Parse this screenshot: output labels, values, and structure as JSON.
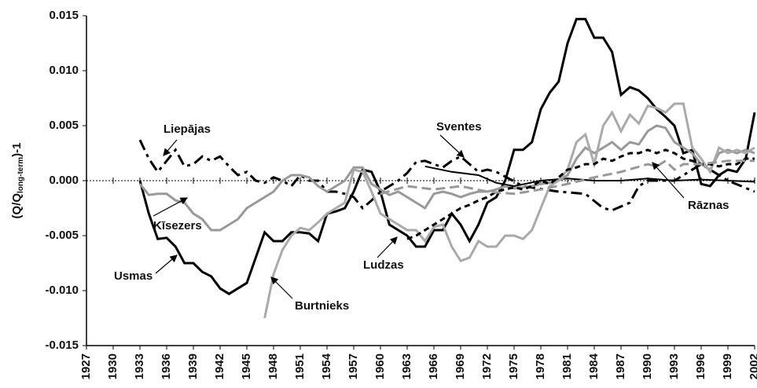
{
  "chart_data": {
    "type": "line",
    "ylabel": {
      "main": "(Q/Q",
      "sub": "long-term",
      "end": ")-1"
    },
    "xlim": [
      1927,
      2002
    ],
    "xticks": [
      1927,
      1930,
      1933,
      1936,
      1939,
      1942,
      1945,
      1948,
      1951,
      1954,
      1957,
      1960,
      1963,
      1966,
      1969,
      1972,
      1975,
      1978,
      1981,
      1984,
      1987,
      1990,
      1993,
      1996,
      1999,
      2002
    ],
    "ylim": [
      -0.015,
      0.015
    ],
    "yticks": [
      -0.015,
      {
        "value": -0.01,
        "label": "-0.010"
      },
      -0.005,
      {
        "value": 0,
        "label": "0.000"
      },
      0.005,
      {
        "value": 0.01,
        "label": "0.010"
      },
      0.015
    ],
    "series": [
      {
        "name": "Usmas",
        "color": "#000000",
        "dash": "none",
        "width": 3,
        "x": [
          1933,
          1934,
          1935,
          1936,
          1937,
          1938,
          1939,
          1940,
          1941,
          1942,
          1943,
          1944,
          1945,
          1946,
          1947,
          1948,
          1949,
          1950,
          1951,
          1952,
          1953,
          1954,
          1955,
          1956,
          1957,
          1958,
          1959,
          1960,
          1961,
          1962,
          1963,
          1964,
          1965,
          1966,
          1967,
          1968,
          1969,
          1970,
          1971,
          1972,
          1973,
          1974,
          1975,
          1976,
          1977,
          1978,
          1979,
          1980,
          1981,
          1982,
          1983,
          1984,
          1985,
          1986,
          1987,
          1988,
          1989,
          1990,
          1991,
          1992,
          1993,
          1994,
          1995,
          1996,
          1997,
          1998,
          1999,
          2000,
          2001,
          2002
        ],
        "values": [
          0,
          -0.003,
          -0.0053,
          -0.0052,
          -0.006,
          -0.0075,
          -0.0075,
          -0.0083,
          -0.0087,
          -0.0098,
          -0.0103,
          -0.0098,
          -0.0093,
          -0.007,
          -0.0047,
          -0.0055,
          -0.0055,
          -0.0047,
          -0.0047,
          -0.0048,
          -0.0055,
          -0.003,
          -0.0028,
          -0.0025,
          -0.001,
          0.001,
          0.0008,
          -0.001,
          -0.004,
          -0.0045,
          -0.005,
          -0.006,
          -0.006,
          -0.0045,
          -0.0045,
          -0.003,
          -0.004,
          -0.0055,
          -0.004,
          -0.002,
          -0.0015,
          0,
          0.0028,
          0.0028,
          0.0035,
          0.0065,
          0.008,
          0.009,
          0.0125,
          0.0147,
          0.0147,
          0.013,
          0.013,
          0.0117,
          0.0078,
          0.0085,
          0.0082,
          0.0075,
          0.0065,
          0.0058,
          0.005,
          0.0025,
          0.0028,
          -0.0003,
          -0.0005,
          0.0005,
          0.001,
          0.0008,
          0.002,
          0.0062
        ]
      },
      {
        "name": "Liepājas",
        "color": "#000000",
        "dash": "14 6 4 6",
        "width": 3,
        "x": [
          1933,
          1934,
          1935,
          1936,
          1937,
          1938,
          1939,
          1940,
          1941,
          1942,
          1943,
          1944,
          1945,
          1946,
          1947,
          1948,
          1949,
          1950,
          1951,
          1952,
          1953,
          1954,
          1955,
          1956,
          1957,
          1958,
          1959,
          1960,
          1961,
          1962,
          1963,
          1964,
          1965,
          1966,
          1967,
          1968,
          1969,
          1970,
          1971,
          1972,
          1973,
          1976,
          1980,
          1983,
          1985,
          1986,
          1988,
          1989,
          1990,
          1993,
          1996,
          1999,
          2002
        ],
        "values": [
          0.0037,
          0.002,
          0.0008,
          0.0018,
          0.0028,
          0.0013,
          0.0015,
          0.0022,
          0.0018,
          0.0022,
          0.0013,
          0.0005,
          0.0008,
          0,
          -0.0002,
          0.0003,
          0,
          -0.0005,
          0.0005,
          0,
          0,
          -0.001,
          -0.001,
          -0.0012,
          -0.0015,
          -0.0025,
          -0.0018,
          -0.001,
          -0.0005,
          0,
          0.0007,
          0.0017,
          0.0018,
          0.0015,
          0.0012,
          0.0018,
          0.0022,
          0.0015,
          0.0008,
          0.001,
          0.0008,
          -0.0005,
          -0.001,
          -0.0012,
          -0.0025,
          -0.0027,
          -0.002,
          -0.0005,
          0,
          0,
          0.0015,
          0,
          -0.001
        ]
      },
      {
        "name": "Sventes",
        "color": "#000000",
        "dash": "none",
        "width": 2,
        "x": [
          1965,
          1968,
          1971,
          1973,
          1975,
          1978,
          1981,
          1984,
          1987,
          1990,
          1993,
          1996,
          1999,
          2002
        ],
        "values": [
          0.0013,
          0.0008,
          0.0005,
          -0.0002,
          -0.0005,
          0,
          0.0002,
          0,
          0,
          0.0002,
          0,
          0.0001,
          0,
          -0.0001
        ]
      },
      {
        "name": "Kīsezers",
        "color": "#999999",
        "dash": "none",
        "width": 3,
        "x": [
          1933,
          1934,
          1935,
          1936,
          1937,
          1938,
          1939,
          1940,
          1941,
          1942,
          1943,
          1944,
          1945,
          1946,
          1947,
          1948,
          1949,
          1950,
          1951,
          1952,
          1953,
          1954,
          1955,
          1956,
          1957,
          1958,
          1959,
          1960,
          1961,
          1962,
          1963,
          1964,
          1965,
          1966,
          1967,
          1968,
          1969,
          1970,
          1971,
          1972,
          1973,
          1974,
          1975,
          1976,
          1977,
          1978,
          1979,
          1980,
          1981,
          1982,
          1983,
          1984,
          1985,
          1986,
          1987,
          1988,
          1989,
          1990,
          1991,
          1992,
          1993,
          1994,
          1995,
          1996,
          1997,
          1998,
          1999,
          2000,
          2001,
          2002
        ],
        "values": [
          -0.0003,
          -0.0013,
          -0.0012,
          -0.0012,
          -0.0018,
          -0.002,
          -0.003,
          -0.0035,
          -0.0045,
          -0.0045,
          -0.004,
          -0.0035,
          -0.0025,
          -0.002,
          -0.0015,
          -0.001,
          0,
          0.0005,
          0.0005,
          0.0003,
          -0.0005,
          -0.001,
          -0.0005,
          0,
          0.0012,
          0.0012,
          -0.0003,
          -0.0008,
          -0.0013,
          -0.001,
          -0.0015,
          -0.002,
          -0.0025,
          -0.0012,
          -0.001,
          -0.0012,
          -0.0015,
          -0.0012,
          -0.001,
          -0.001,
          -0.0008,
          -0.0005,
          -0.0007,
          -0.0006,
          -0.0005,
          -0.0003,
          -0.0002,
          0,
          0.0005,
          0.002,
          0.003,
          0.0025,
          0.003,
          0.0035,
          0.0028,
          0.0035,
          0.0033,
          0.0045,
          0.005,
          0.0048,
          0.0035,
          0.003,
          0.0025,
          0.0015,
          0.001,
          0.0025,
          0.0028,
          0.0025,
          0.0028,
          0.0025
        ]
      },
      {
        "name": "Burtnieks",
        "color": "#aaaaaa",
        "dash": "none",
        "width": 3,
        "x": [
          1947,
          1948,
          1949,
          1950,
          1951,
          1952,
          1953,
          1954,
          1955,
          1956,
          1957,
          1958,
          1959,
          1960,
          1961,
          1962,
          1963,
          1964,
          1965,
          1966,
          1967,
          1968,
          1969,
          1970,
          1971,
          1972,
          1973,
          1974,
          1975,
          1976,
          1977,
          1978,
          1979,
          1980,
          1981,
          1982,
          1983,
          1984,
          1985,
          1986,
          1987,
          1988,
          1989,
          1990,
          1991,
          1992,
          1993,
          1994,
          1995,
          1996,
          1997,
          1998,
          1999,
          2000,
          2001,
          2002
        ],
        "values": [
          -0.0125,
          -0.0085,
          -0.0063,
          -0.005,
          -0.0043,
          -0.0045,
          -0.0038,
          -0.003,
          -0.0025,
          -0.002,
          0.001,
          0.0008,
          -0.001,
          -0.003,
          -0.0035,
          -0.004,
          -0.0045,
          -0.0045,
          -0.0055,
          -0.0042,
          -0.004,
          -0.006,
          -0.0073,
          -0.007,
          -0.0055,
          -0.006,
          -0.006,
          -0.005,
          -0.005,
          -0.0053,
          -0.0045,
          -0.0025,
          -0.0005,
          0,
          0.001,
          0.0035,
          0.0042,
          0.0015,
          0.005,
          0.0062,
          0.0045,
          0.006,
          0.0052,
          0.0068,
          0.0066,
          0.0062,
          0.007,
          0.007,
          0.003,
          0.002,
          0.0008,
          0.003,
          0.0025,
          0.0028,
          0.0025,
          0.003
        ]
      },
      {
        "name": "Ludzas",
        "color": "#000000",
        "dash": "7 5",
        "width": 3,
        "x": [
          1963,
          1964,
          1965,
          1966,
          1967,
          1968,
          1969,
          1970,
          1971,
          1972,
          1973,
          1974,
          1975,
          1976,
          1977,
          1978,
          1979,
          1980,
          1981,
          1982,
          1983,
          1984,
          1985,
          1986,
          1987,
          1988,
          1989,
          1990,
          1991,
          1992,
          1993,
          1994,
          1995,
          1996,
          1997,
          1998,
          1999,
          2000,
          2001,
          2002
        ],
        "values": [
          -0.0053,
          -0.005,
          -0.0045,
          -0.004,
          -0.0035,
          -0.003,
          -0.0025,
          -0.0022,
          -0.0018,
          -0.0015,
          -0.001,
          -0.0008,
          -0.0006,
          -0.0008,
          -0.0005,
          0,
          -0.0003,
          0.0003,
          0.001,
          0.0012,
          0.0015,
          0.0015,
          0.002,
          0.0018,
          0.0022,
          0.0025,
          0.0025,
          0.0028,
          0.0025,
          0.0028,
          0.0025,
          0.002,
          0.0018,
          0.0015,
          0.0015,
          0.0013,
          0.0015,
          0.0015,
          0.002,
          0.002
        ]
      },
      {
        "name": "Rāznas",
        "color": "#999999",
        "dash": "12 6",
        "width": 3,
        "x": [
          1960,
          1963,
          1966,
          1969,
          1972,
          1975,
          1978,
          1981,
          1984,
          1987,
          1990,
          1991,
          1992,
          1993,
          1994,
          1996,
          1999,
          2002
        ],
        "values": [
          -0.0012,
          -0.0005,
          -0.0008,
          -0.0005,
          -0.001,
          -0.0012,
          -0.0008,
          -0.0003,
          0.0003,
          0.0008,
          0.0015,
          0.0013,
          0.0018,
          0.001,
          0.0015,
          0.0015,
          0.0018,
          0.0018
        ]
      }
    ]
  }
}
